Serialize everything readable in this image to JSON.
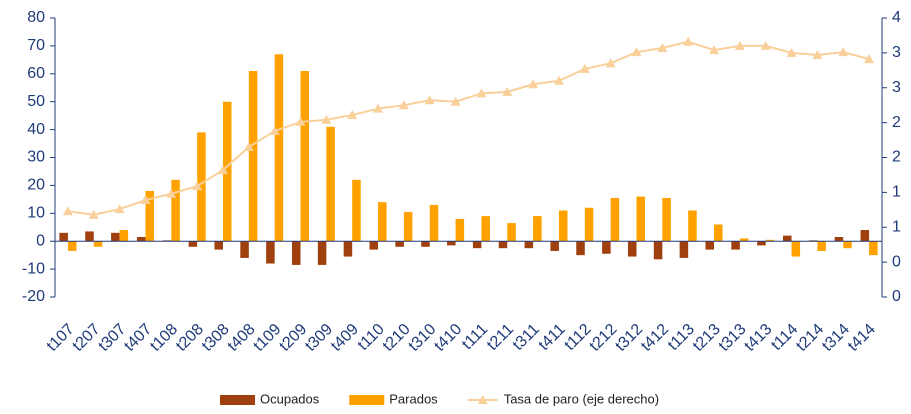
{
  "chart_data": {
    "type": "bar-line",
    "categories": [
      "t107",
      "t207",
      "t307",
      "t407",
      "t108",
      "t208",
      "t308",
      "t408",
      "t109",
      "t209",
      "t309",
      "t409",
      "t110",
      "t210",
      "t310",
      "t410",
      "t111",
      "t211",
      "t311",
      "t411",
      "t112",
      "t212",
      "t312",
      "t412",
      "t113",
      "t213",
      "t313",
      "t413",
      "t114",
      "t214",
      "t314",
      "t414"
    ],
    "series": [
      {
        "name": "Ocupados",
        "color": "#a0400f",
        "type": "bar",
        "values": [
          3,
          3.5,
          3,
          1.5,
          0.3,
          -2,
          -3,
          -6,
          -8,
          -8.5,
          -8.5,
          -5.5,
          -3,
          -2,
          -2,
          -1.5,
          -2.5,
          -2.5,
          -2.5,
          -3.5,
          -5,
          -4.5,
          -5.5,
          -6.5,
          -6,
          -3,
          -3,
          -1.5,
          2,
          0.3,
          1.5,
          4
        ]
      },
      {
        "name": "Parados",
        "color": "#ffa200",
        "type": "bar",
        "values": [
          -3.5,
          -2,
          4,
          18,
          22,
          39,
          50,
          61,
          67,
          61,
          41,
          22,
          14,
          10.5,
          13,
          8,
          9,
          6.5,
          9,
          11,
          12,
          15.5,
          16,
          15.5,
          11,
          6,
          1,
          0.5,
          -5.5,
          -3.5,
          -2.5,
          -5
        ]
      },
      {
        "name": "Tasa de paro (eje derecho)",
        "color": "#f9cf9a",
        "type": "line",
        "axis": "y2",
        "values": [
          1.23,
          1.18,
          1.26,
          1.39,
          1.48,
          1.59,
          1.82,
          2.15,
          2.38,
          2.51,
          2.54,
          2.61,
          2.7,
          2.75,
          2.82,
          2.8,
          2.92,
          2.94,
          3.05,
          3.1,
          3.27,
          3.35,
          3.51,
          3.57,
          3.66,
          3.54,
          3.6,
          3.6,
          3.5,
          3.47,
          3.51,
          3.41
        ]
      }
    ],
    "ylim": [
      -20,
      80
    ],
    "yticks": [
      -20,
      -10,
      0,
      10,
      20,
      30,
      40,
      50,
      60,
      70,
      80
    ],
    "y2lim": [
      0,
      4
    ],
    "y2ticks": [
      0,
      {
        "value": 0.5,
        "label": "0"
      },
      1,
      {
        "value": 1.5,
        "label": "1"
      },
      2,
      {
        "value": 2.5,
        "label": "2"
      },
      3,
      {
        "value": 3.5,
        "label": "3"
      },
      4
    ],
    "axis_color": "#1f3a7a"
  }
}
